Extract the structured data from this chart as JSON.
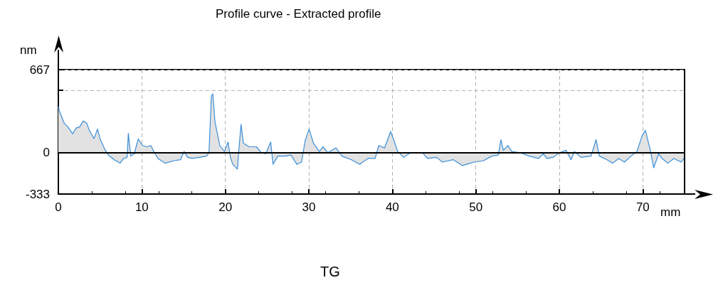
{
  "chart_data": {
    "type": "area",
    "title": "Profile curve - Extracted profile",
    "xlabel": "mm",
    "ylabel": "nm",
    "annotations": [
      "TG"
    ],
    "xlim": [
      0,
      75
    ],
    "xticks": [
      0,
      10,
      20,
      30,
      40,
      50,
      60,
      70
    ],
    "ylim": [
      -333,
      667
    ],
    "yticks": [
      -333,
      0,
      {
        "value": 500,
        "label": null
      },
      667
    ],
    "grid": true,
    "marker": "none",
    "line_style": "solid",
    "ref_lines": [
      {
        "axis": "y",
        "value": 0,
        "color": "#000000"
      }
    ],
    "series": [
      {
        "color": "#3b8ed8",
        "x": [
          0,
          0.14,
          0.43,
          0.71,
          1.14,
          1.71,
          2.13,
          2.56,
          2.98,
          3.41,
          3.7,
          4.27,
          4.69,
          4.98,
          5.55,
          5.97,
          6.68,
          7.39,
          7.82,
          8.24,
          8.38,
          8.67,
          9.09,
          9.57,
          10.08,
          10.65,
          11.08,
          11.5,
          11.93,
          12.78,
          13.78,
          14.63,
          15.06,
          15.48,
          16.05,
          16.9,
          17.76,
          18.04,
          18.33,
          18.5,
          18.76,
          19.33,
          19.9,
          20.32,
          20.61,
          20.88,
          21.45,
          21.59,
          21.88,
          22.16,
          22.87,
          23.72,
          24.29,
          24.86,
          25.43,
          25.71,
          26.28,
          27.14,
          27.85,
          28.56,
          29.13,
          29.55,
          30.03,
          30.55,
          31.26,
          31.69,
          32.26,
          33.25,
          33.96,
          35.1,
          36.09,
          37.09,
          37.94,
          38.37,
          39.08,
          39.79,
          40.21,
          40.64,
          41.35,
          42.2,
          43.6,
          44.2,
          45.3,
          46.0,
          47.3,
          48.4,
          49.3,
          49.8,
          50.9,
          51.9,
          52.7,
          53.0,
          53.3,
          53.85,
          54.3,
          55.3,
          56.4,
          57.5,
          58.1,
          58.5,
          59.25,
          60.04,
          60.8,
          61.4,
          61.8,
          62.6,
          63.8,
          64.4,
          64.8,
          65.7,
          66.4,
          67.1,
          67.8,
          68.6,
          69.3,
          69.9,
          70.3,
          70.9,
          71.3,
          71.9,
          72.3,
          73.0,
          73.7,
          74.6,
          74.9
        ],
        "values": [
          368,
          331,
          283,
          236,
          208,
          151,
          198,
          208,
          255,
          236,
          180,
          113,
          189,
          113,
          28,
          -19,
          -57,
          -85,
          -47,
          -38,
          155,
          -28,
          -9,
          110,
          57,
          47,
          57,
          0,
          -47,
          -85,
          -66,
          -57,
          9,
          -38,
          -47,
          -38,
          -28,
          0,
          454,
          473,
          246,
          57,
          9,
          85,
          -38,
          -94,
          -132,
          0,
          227,
          76,
          47,
          47,
          0,
          -9,
          85,
          -94,
          -28,
          -28,
          -19,
          -94,
          -76,
          94,
          189,
          76,
          9,
          47,
          0,
          38,
          -28,
          -57,
          -94,
          -47,
          -47,
          57,
          38,
          170,
          94,
          9,
          -38,
          0,
          0,
          -47,
          -38,
          -76,
          -57,
          -104,
          -85,
          -76,
          -66,
          -28,
          -19,
          104,
          19,
          57,
          9,
          0,
          -28,
          -47,
          -9,
          -47,
          -38,
          0,
          19,
          -57,
          9,
          -38,
          -28,
          104,
          -28,
          -57,
          -85,
          -47,
          -76,
          -28,
          9,
          132,
          180,
          19,
          -123,
          -9,
          -47,
          -85,
          -47,
          -76,
          -47
        ]
      }
    ]
  }
}
